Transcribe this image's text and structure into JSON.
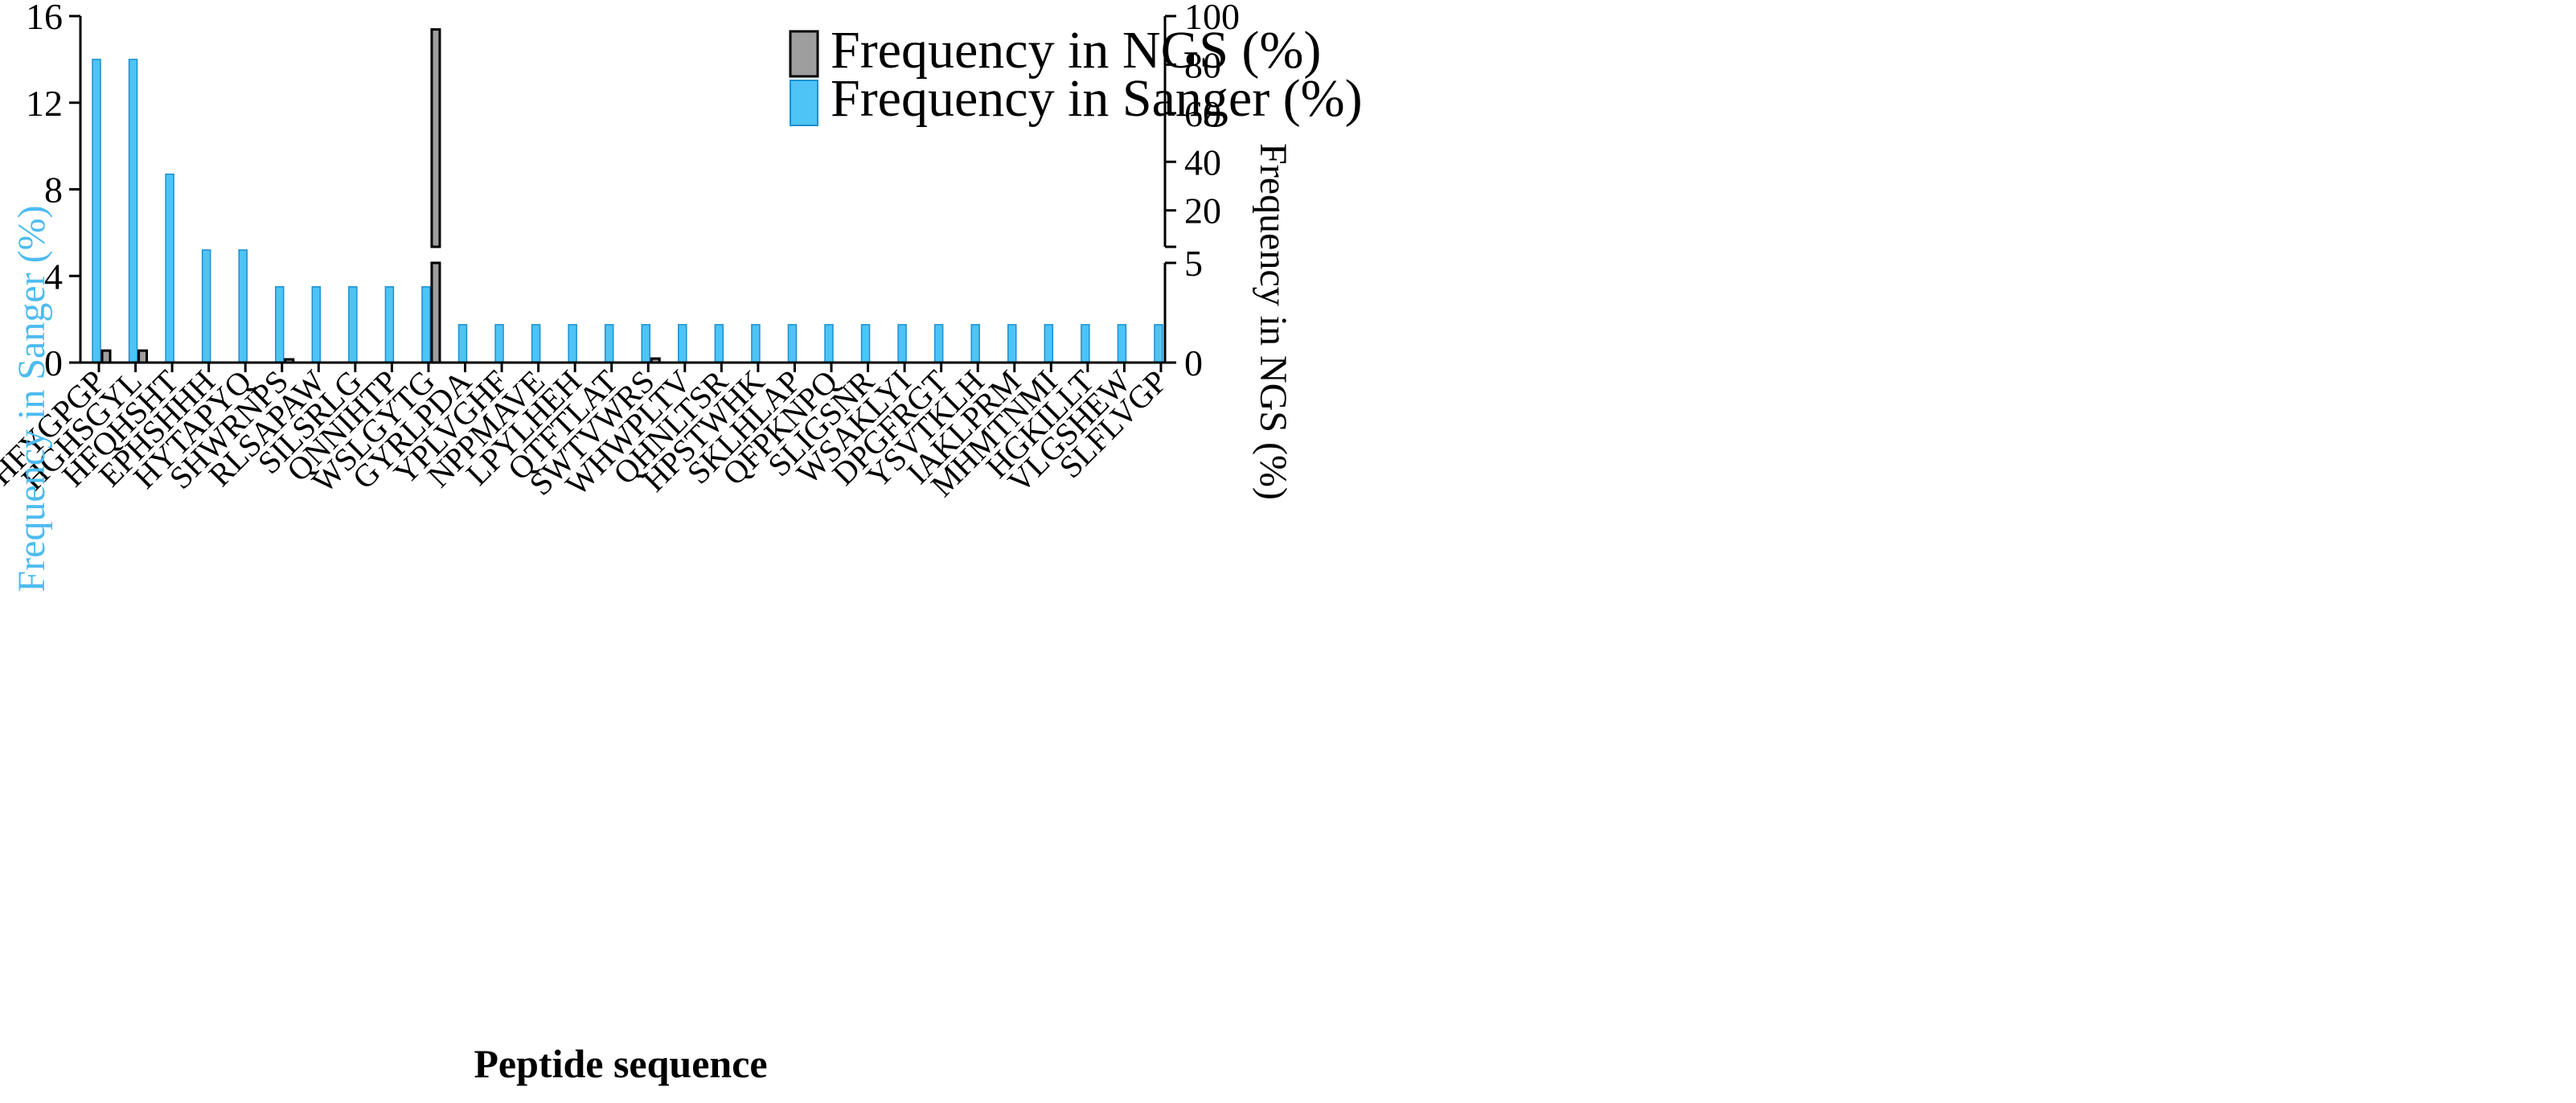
{
  "colors": {
    "ngs": "#9e9e9e",
    "sanger": "#4dc4f5",
    "left_axis_label": "#4dbbf0",
    "axis": "#000000"
  },
  "chart_data": {
    "type": "bar",
    "xlabel": "Peptide sequence",
    "ylabel_left": "Frequency in Sanger (%)",
    "ylabel_right": "Frequency in NGS  (%)",
    "left_axis": {
      "ylim": [
        0,
        16
      ],
      "ticks": [
        0,
        4,
        8,
        12,
        16
      ]
    },
    "right_axis": {
      "lower_segment": {
        "ylim": [
          0,
          5
        ],
        "ticks": [
          0,
          5
        ]
      },
      "upper_segment": {
        "ylim": [
          5,
          100
        ],
        "ticks": [
          20,
          40,
          60,
          80,
          100
        ]
      }
    },
    "categories": [
      "HFYGPGP",
      "HGHSGYL",
      "HFQHSHT",
      "EPHSHHH",
      "HYTAPYQ",
      "SHWRNPS",
      "RLSAPAW",
      "SILSRLG",
      "QNNIHTP",
      "WSLGYTG",
      "GYRLPDA",
      "YPLVGHF",
      "NPPMAVE",
      "LPYLHEH",
      "QTFTLAT",
      "SWTVWRS",
      "WHWPLTV",
      "QHNLTSR",
      "HPSTWHK",
      "SKLHLAP",
      "QFPKNPQ",
      "SLIGSNR",
      "WSAKLYI",
      "DPGFRGT",
      "YSVTKLH",
      "IAKLPRM",
      "MHMTNMI",
      "HGKILLT",
      "VLGSHEW",
      "SLFLVGP"
    ],
    "series": [
      {
        "name": "Frequency in NGS (%)",
        "axis": "right",
        "values": [
          0.6,
          0.6,
          0,
          0,
          0,
          0.1,
          0,
          0,
          0,
          94.5,
          0,
          0,
          0,
          0,
          0,
          0.2,
          0,
          0,
          0,
          0,
          0,
          0,
          0,
          0,
          0,
          0,
          0,
          0,
          0,
          0
        ]
      },
      {
        "name": "Frequency in Sanger (%)",
        "axis": "left",
        "values": [
          14.0,
          14.0,
          8.7,
          5.2,
          5.2,
          3.5,
          3.5,
          3.5,
          3.5,
          3.5,
          1.75,
          1.75,
          1.75,
          1.75,
          1.75,
          1.75,
          1.75,
          1.75,
          1.75,
          1.75,
          1.75,
          1.75,
          1.75,
          1.75,
          1.75,
          1.75,
          1.75,
          1.75,
          1.75,
          1.75
        ]
      }
    ],
    "legend": [
      "Frequency in NGS (%)",
      "Frequency in Sanger (%)"
    ],
    "legend_position": "top-right"
  }
}
